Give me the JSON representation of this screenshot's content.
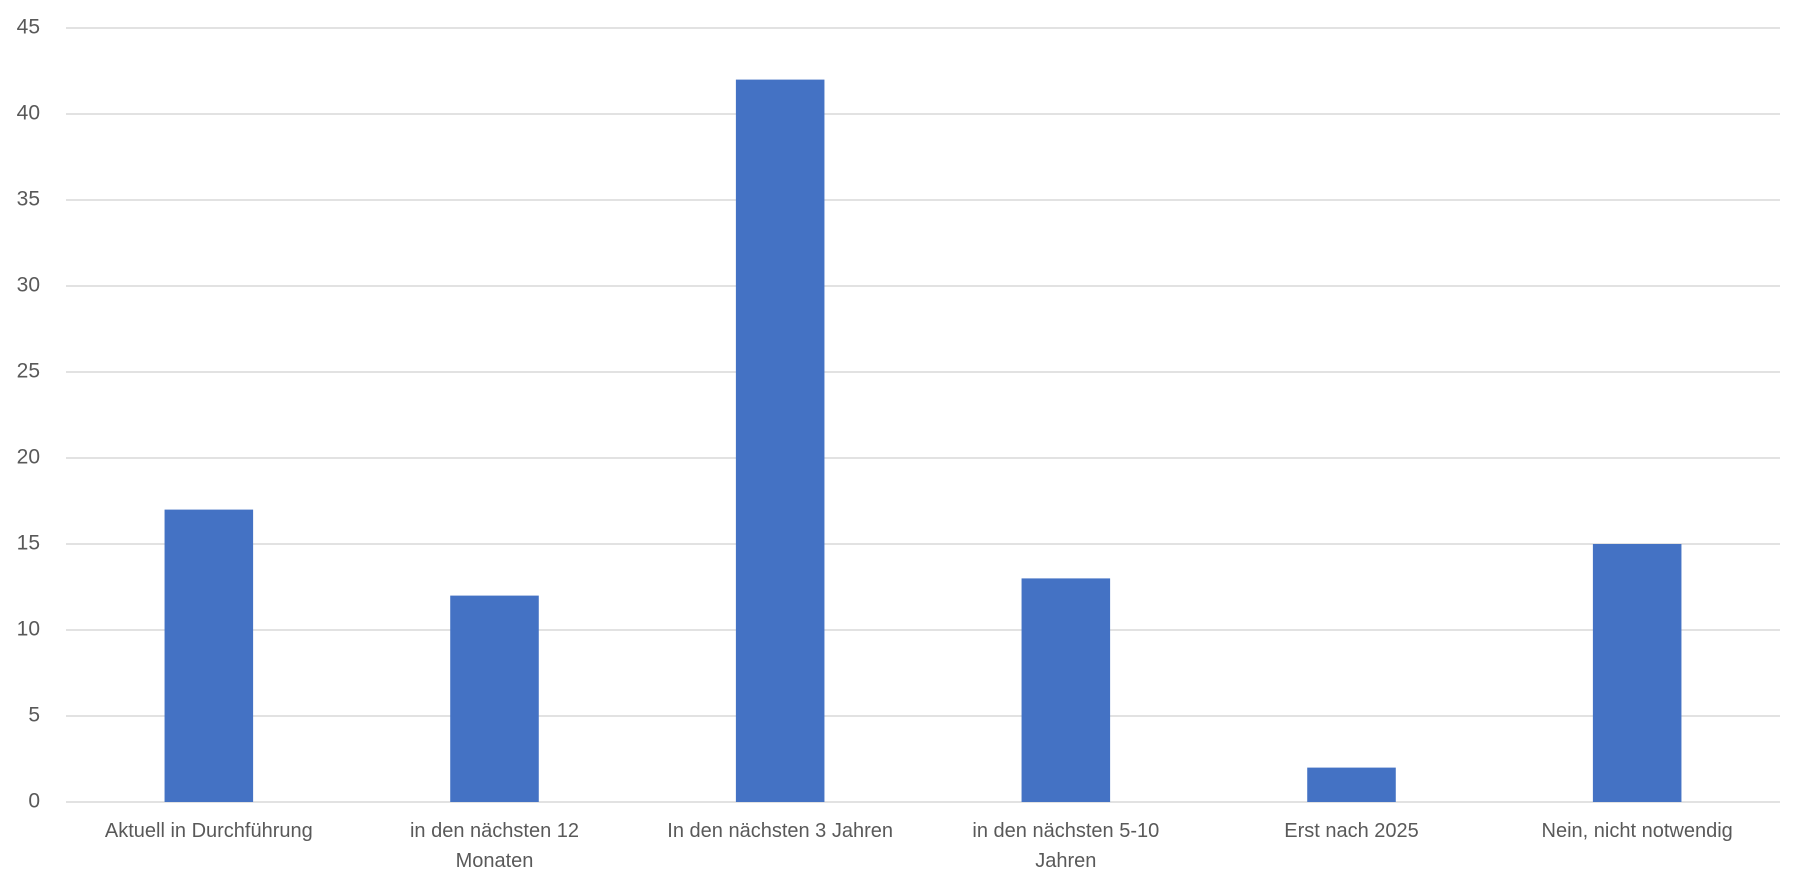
{
  "chart_data": {
    "type": "bar",
    "categories": [
      "Aktuell in Durchführung",
      "in den nächsten 12 Monaten",
      "In den nächsten 3 Jahren",
      "in den nächsten 5-10 Jahren",
      "Erst nach 2025",
      "Nein, nicht notwendig"
    ],
    "values": [
      17,
      12,
      42,
      13,
      2,
      15
    ],
    "color": "#4472c4",
    "ylim": [
      0,
      45
    ],
    "yticks": [
      0,
      5,
      10,
      15,
      20,
      25,
      30,
      35,
      40,
      45
    ],
    "grid": true
  }
}
